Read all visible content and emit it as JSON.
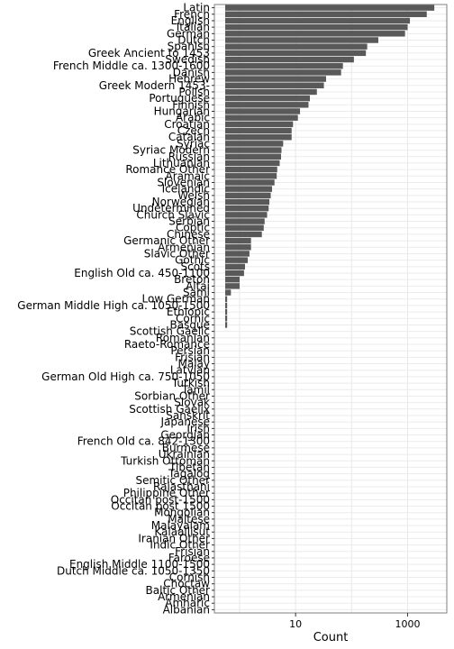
{
  "chart_data": {
    "type": "bar",
    "orientation": "horizontal",
    "xlabel": "Count",
    "ylabel": "",
    "x_scale": "log10",
    "x_ticks": [
      10,
      1000
    ],
    "x_tick_labels": [
      "10",
      "1000"
    ],
    "grid": true,
    "colors": {
      "bar": "#595959",
      "panel_border": "#7f7f7f",
      "grid": "#ebebeb"
    },
    "categories": [
      "Latin",
      "French",
      "English",
      "Italian",
      "German",
      "Dutch",
      "Spanish",
      "Greek Ancient to 1453",
      "Swedish",
      "French Middle ca. 1300-1600",
      "Danish",
      "Hebrew",
      "Greek Modern 1453-",
      "Polish",
      "Portuguese",
      "Finnish",
      "Hungarian",
      "Arabic",
      "Croatian",
      "Czech",
      "Catalan",
      "Syriac",
      "Syriac Modern",
      "Russian",
      "Lithuanian",
      "Romance Other",
      "Aramaic",
      "Slovenian",
      "Icelandic",
      "Welsh",
      "Norwegian",
      "Undetermined",
      "Church Slavic",
      "Serbian",
      "Coptic",
      "Chinese",
      "Germanic Other",
      "Armenian",
      "Slavic Other",
      "Gothic",
      "Scots",
      "English Old ca. 450-1100",
      "Breton",
      "Altai",
      "Sami",
      "Low German",
      "German Middle High ca. 1050-1500",
      "Ethiopic",
      "Cornic",
      "Basque",
      "Scottish Gaelic",
      "Romanian",
      "Raeto-Romance",
      "Persian",
      "Frisian",
      "Malay",
      "Latvian",
      "German Old High ca. 750-1050",
      "Turkish",
      "Tamil",
      "Sorbian Other",
      "Slovak",
      "Scottish Gaelix",
      "Sanskrit",
      "Japanese",
      "Irish",
      "Georgian",
      "French Old ca. 842-1300",
      "Burmese",
      "Ukrainian",
      "Turkish Ottoman",
      "Tibetan",
      "Tagalog",
      "Semitic Other",
      "Rajasthani",
      "Philippine Other",
      "Occitan post-1500",
      "Occitan post 1500",
      "Mongolian",
      "Maltese",
      "Malayalam",
      "Kalaallisut",
      "Iranian Other",
      "Indic Other",
      "Frisian",
      "Faroese",
      "English Middle 1100-1500",
      "Dutch Middle ca. 1050-1350",
      "Cornish",
      "Choctaw",
      "Baltic Other",
      "Armenian",
      "Amharic",
      "Albanian"
    ],
    "values": [
      3000,
      2200,
      1100,
      1000,
      900,
      300,
      190,
      180,
      110,
      70,
      65,
      35,
      32,
      24,
      18,
      17,
      12,
      11,
      9,
      8.5,
      8.5,
      6,
      5.6,
      5.5,
      5.2,
      4.7,
      4.6,
      4.2,
      3.8,
      3.6,
      3.4,
      3.3,
      3.1,
      2.8,
      2.7,
      2.5,
      1.6,
      1.6,
      1.5,
      1.4,
      1.25,
      1.2,
      1,
      1,
      0.7,
      0.6,
      0.6,
      0.6,
      0.6,
      0.6,
      0.3,
      0.3,
      0.3,
      0.3,
      0.3,
      0.3,
      0.3,
      0.3,
      0.2,
      0.2,
      0.2,
      0.2,
      0.2,
      0.2,
      0.2,
      0.2,
      0.2,
      0.2,
      0.2,
      0,
      0,
      0,
      0,
      0,
      0,
      0,
      0,
      0,
      0,
      0,
      0,
      0,
      0,
      0,
      0,
      0,
      0,
      0,
      0,
      0,
      0,
      0,
      0,
      0
    ]
  }
}
